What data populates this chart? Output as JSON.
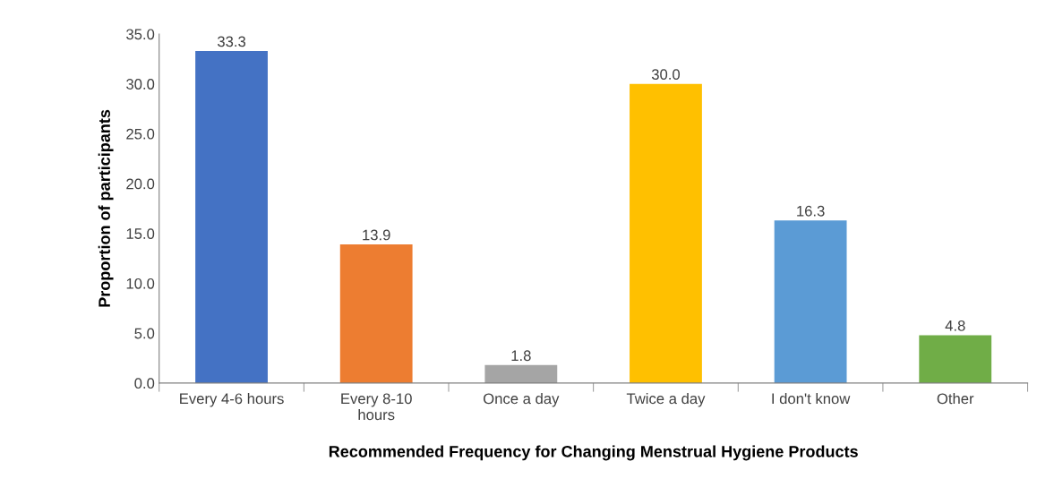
{
  "chart_data": {
    "type": "bar",
    "xlabel": "Recommended Frequency for Changing Menstrual Hygiene Products",
    "ylabel": "Proportion of participants",
    "categories": [
      "Every 4-6 hours",
      "Every 8-10\nhours",
      "Once a day",
      "Twice a day",
      "I don't know",
      "Other"
    ],
    "values": [
      33.3,
      13.9,
      1.8,
      30.0,
      16.3,
      4.8
    ],
    "value_labels": [
      "33.3",
      "13.9",
      "1.8",
      "30.0",
      "16.3",
      "4.8"
    ],
    "colors": [
      "#4472c4",
      "#ed7d31",
      "#a5a5a5",
      "#ffc000",
      "#5b9bd5",
      "#70ad47"
    ],
    "ylim": [
      0,
      35
    ],
    "yticks": [
      {
        "value": 0,
        "label": "0.0"
      },
      {
        "value": 5,
        "label": "5.0"
      },
      {
        "value": 10,
        "label": "10.0"
      },
      {
        "value": 15,
        "label": "15.0"
      },
      {
        "value": 20,
        "label": "20.0"
      },
      {
        "value": 25,
        "label": "25.0"
      },
      {
        "value": 30,
        "label": "30.0"
      },
      {
        "value": 35,
        "label": "35.0"
      }
    ],
    "grid": false,
    "legend": false
  }
}
